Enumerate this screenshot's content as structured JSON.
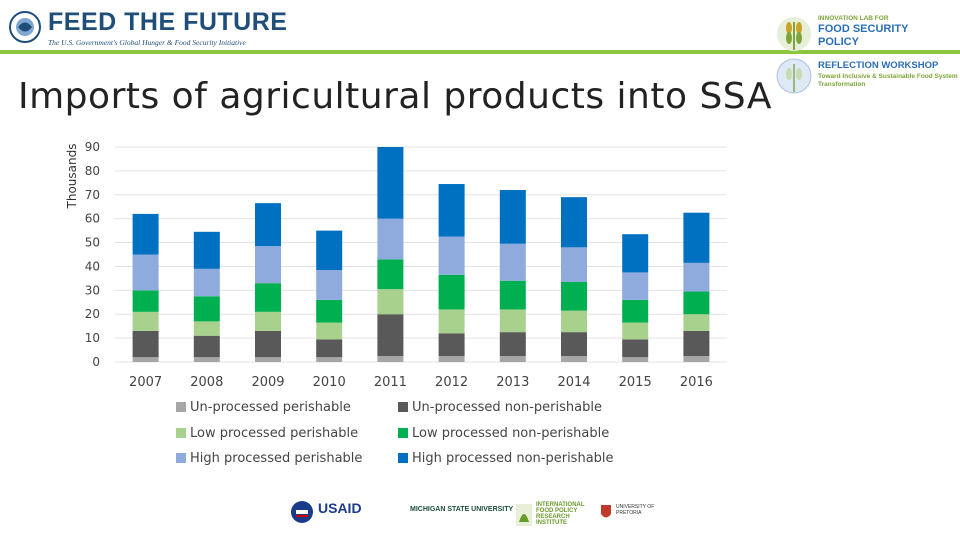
{
  "header": {
    "ftf_logo_text": "FEED THE FUTURE",
    "ftf_tagline": "The U.S. Government's Global Hunger & Food Security Initiative",
    "innovation_lab_small": "INNOVATION LAB FOR",
    "innovation_lab_line1": "FOOD SECURITY",
    "innovation_lab_line2": "POLICY",
    "workshop_title": "REFLECTION WORKSHOP",
    "workshop_subtitle": "Toward Inclusive & Sustainable Food System Transformation"
  },
  "title": "Imports of agricultural products into SSA",
  "footer": {
    "usaid": "USAID",
    "msu": "MICHIGAN STATE UNIVERSITY",
    "ifpri": "INTERNATIONAL FOOD POLICY RESEARCH INSTITUTE",
    "up": "UNIVERSITY OF PRETORIA"
  },
  "chart_data": {
    "type": "bar",
    "stacked": true,
    "ylabel": "Thousands",
    "ylim": [
      0,
      90
    ],
    "yticks": [
      0,
      10,
      20,
      30,
      40,
      50,
      60,
      70,
      80,
      90
    ],
    "grid": true,
    "legend_position": "bottom",
    "categories": [
      "2007",
      "2008",
      "2009",
      "2010",
      "2011",
      "2012",
      "2013",
      "2014",
      "2015",
      "2016"
    ],
    "series": [
      {
        "name": "Un-processed perishable",
        "color": "#a6a6a6",
        "values": [
          2,
          2,
          2,
          2,
          2.5,
          2.5,
          2.5,
          2.5,
          2,
          2.5
        ]
      },
      {
        "name": "Un-processed non-perishable",
        "color": "#595959",
        "values": [
          11,
          9,
          11,
          7.5,
          17.5,
          9.5,
          10,
          10,
          7.5,
          10.5
        ]
      },
      {
        "name": "Low processed perishable",
        "color": "#a9d18e",
        "values": [
          8,
          6,
          8,
          7,
          10.5,
          10,
          9.5,
          9,
          7,
          7
        ]
      },
      {
        "name": "Low processed non-perishable",
        "color": "#00b050",
        "values": [
          9,
          10.5,
          12,
          9.5,
          12.5,
          14.5,
          12,
          12,
          9.5,
          9.5
        ]
      },
      {
        "name": "High processed perishable",
        "color": "#8faadc",
        "values": [
          15,
          11.5,
          15.5,
          12.5,
          17,
          16,
          15.5,
          14.5,
          11.5,
          12
        ]
      },
      {
        "name": "High processed non-perishable",
        "color": "#0070c0",
        "values": [
          17,
          15.5,
          18,
          16.5,
          30,
          22,
          22.5,
          21,
          16,
          21
        ]
      }
    ]
  }
}
